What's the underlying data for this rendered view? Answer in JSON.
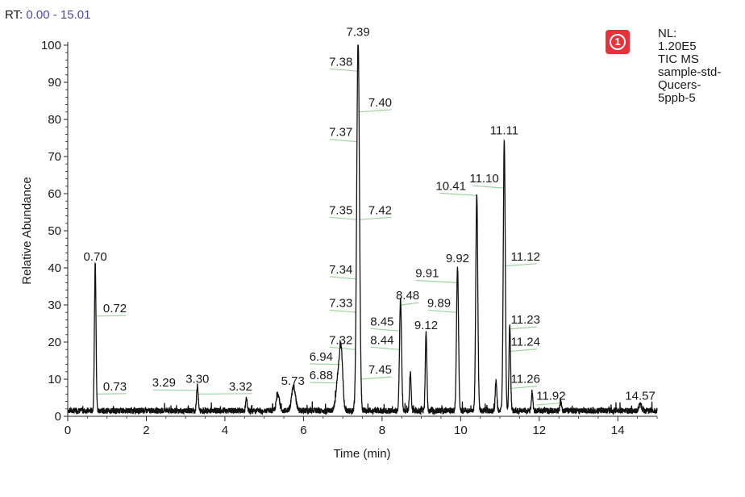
{
  "header": {
    "rt_label": "RT:",
    "rt_range": "0.00 - 15.01"
  },
  "badge": {
    "number": "1",
    "color": "#e8323b"
  },
  "info": {
    "lines": [
      "NL:",
      "1.20E5",
      "TIC  MS",
      "sample-std-",
      "Qucers-",
      "5ppb-5"
    ]
  },
  "colors": {
    "trace": "#111111",
    "leader": "#9fd29f",
    "rt_value": "#4a4aa8"
  },
  "chart_data": {
    "type": "line",
    "xlabel": "Time (min)",
    "ylabel": "Relative Abundance",
    "xlim": [
      0,
      15
    ],
    "ylim": [
      0,
      100
    ],
    "xticks": [
      0,
      2,
      4,
      6,
      8,
      10,
      12,
      14
    ],
    "yticks": [
      0,
      10,
      20,
      30,
      40,
      50,
      60,
      70,
      80,
      90,
      100
    ],
    "baseline": 1.5,
    "peaks": [
      {
        "rt": 0.7,
        "height": 40,
        "width": 0.02
      },
      {
        "rt": 3.3,
        "height": 7,
        "width": 0.02
      },
      {
        "rt": 4.55,
        "height": 3.5,
        "width": 0.02
      },
      {
        "rt": 5.35,
        "height": 4.5,
        "width": 0.04
      },
      {
        "rt": 5.75,
        "height": 6.5,
        "width": 0.05
      },
      {
        "rt": 6.88,
        "height": 9,
        "width": 0.05
      },
      {
        "rt": 6.96,
        "height": 15,
        "width": 0.04
      },
      {
        "rt": 7.39,
        "height": 100,
        "width": 0.035
      },
      {
        "rt": 8.47,
        "height": 30,
        "width": 0.025
      },
      {
        "rt": 8.72,
        "height": 10.5,
        "width": 0.02
      },
      {
        "rt": 9.12,
        "height": 21,
        "width": 0.02
      },
      {
        "rt": 9.92,
        "height": 39,
        "width": 0.025
      },
      {
        "rt": 10.41,
        "height": 59,
        "width": 0.025
      },
      {
        "rt": 10.9,
        "height": 8,
        "width": 0.02
      },
      {
        "rt": 11.11,
        "height": 73.5,
        "width": 0.025
      },
      {
        "rt": 11.25,
        "height": 23,
        "width": 0.02
      },
      {
        "rt": 11.82,
        "height": 5,
        "width": 0.02
      },
      {
        "rt": 12.55,
        "height": 2.5,
        "width": 0.02
      },
      {
        "rt": 14.57,
        "height": 2,
        "width": 0.03
      }
    ],
    "labels": [
      {
        "text": "0.70",
        "rt": 0.7,
        "y": 40,
        "label_x": 0.7,
        "label_y": 42
      },
      {
        "text": "0.72",
        "rt": 0.72,
        "y": 27,
        "label_x": 1.2,
        "label_y": 28
      },
      {
        "text": "0.73",
        "rt": 0.73,
        "y": 6,
        "label_x": 1.2,
        "label_y": 7
      },
      {
        "text": "3.29",
        "rt": 3.29,
        "y": 7,
        "label_x": 2.45,
        "label_y": 8
      },
      {
        "text": "3.30",
        "rt": 3.3,
        "y": 6,
        "label_x": 3.3,
        "label_y": 9
      },
      {
        "text": "3.32",
        "rt": 3.32,
        "y": 6,
        "label_x": 4.4,
        "label_y": 7
      },
      {
        "text": "5.73",
        "rt": 5.73,
        "y": 6.5,
        "label_x": 5.73,
        "label_y": 8.5
      },
      {
        "text": "6.88",
        "rt": 6.88,
        "y": 9,
        "label_x": 6.45,
        "label_y": 10
      },
      {
        "text": "6.94",
        "rt": 6.94,
        "y": 14,
        "label_x": 6.45,
        "label_y": 15
      },
      {
        "text": "7.32",
        "rt": 7.32,
        "y": 18,
        "label_x": 6.95,
        "label_y": 19.5
      },
      {
        "text": "7.33",
        "rt": 7.33,
        "y": 28,
        "label_x": 6.95,
        "label_y": 29.5
      },
      {
        "text": "7.34",
        "rt": 7.34,
        "y": 37,
        "label_x": 6.95,
        "label_y": 38.5
      },
      {
        "text": "7.35",
        "rt": 7.35,
        "y": 53,
        "label_x": 6.95,
        "label_y": 54.5
      },
      {
        "text": "7.37",
        "rt": 7.37,
        "y": 74,
        "label_x": 6.95,
        "label_y": 75.5
      },
      {
        "text": "7.38",
        "rt": 7.38,
        "y": 93,
        "label_x": 6.95,
        "label_y": 94.5
      },
      {
        "text": "7.39",
        "rt": 7.39,
        "y": 100,
        "label_x": 7.39,
        "label_y": 102.5
      },
      {
        "text": "7.40",
        "rt": 7.4,
        "y": 82,
        "label_x": 7.95,
        "label_y": 83.5
      },
      {
        "text": "7.42",
        "rt": 7.42,
        "y": 53,
        "label_x": 7.95,
        "label_y": 54.5
      },
      {
        "text": "7.45",
        "rt": 7.45,
        "y": 10,
        "label_x": 7.95,
        "label_y": 11.5
      },
      {
        "text": "8.44",
        "rt": 8.44,
        "y": 18,
        "label_x": 8.0,
        "label_y": 19.5
      },
      {
        "text": "8.45",
        "rt": 8.45,
        "y": 23,
        "label_x": 8.0,
        "label_y": 24.5
      },
      {
        "text": "8.48",
        "rt": 8.48,
        "y": 30,
        "label_x": 8.65,
        "label_y": 31.5
      },
      {
        "text": "9.12",
        "rt": 9.12,
        "y": 21,
        "label_x": 9.12,
        "label_y": 23.5
      },
      {
        "text": "9.89",
        "rt": 9.89,
        "y": 28,
        "label_x": 9.45,
        "label_y": 29.5
      },
      {
        "text": "9.91",
        "rt": 9.91,
        "y": 36,
        "label_x": 9.15,
        "label_y": 37.5
      },
      {
        "text": "9.92",
        "rt": 9.92,
        "y": 39,
        "label_x": 9.92,
        "label_y": 41.5
      },
      {
        "text": "10.41",
        "rt": 10.41,
        "y": 59.5,
        "label_x": 9.75,
        "label_y": 61
      },
      {
        "text": "11.10",
        "rt": 11.1,
        "y": 61.5,
        "label_x": 10.6,
        "label_y": 63
      },
      {
        "text": "11.11",
        "rt": 11.11,
        "y": 73.5,
        "label_x": 11.11,
        "label_y": 76
      },
      {
        "text": "11.12",
        "rt": 11.12,
        "y": 40.5,
        "label_x": 11.65,
        "label_y": 42
      },
      {
        "text": "11.23",
        "rt": 11.23,
        "y": 23.5,
        "label_x": 11.65,
        "label_y": 25
      },
      {
        "text": "11.24",
        "rt": 11.24,
        "y": 17.5,
        "label_x": 11.65,
        "label_y": 19
      },
      {
        "text": "11.26",
        "rt": 11.26,
        "y": 7.5,
        "label_x": 11.65,
        "label_y": 9
      },
      {
        "text": "11.92",
        "rt": 11.92,
        "y": 3,
        "label_x": 12.3,
        "label_y": 4.5
      },
      {
        "text": "14.57",
        "rt": 14.57,
        "y": 2,
        "label_x": 14.57,
        "label_y": 4.5
      }
    ]
  }
}
